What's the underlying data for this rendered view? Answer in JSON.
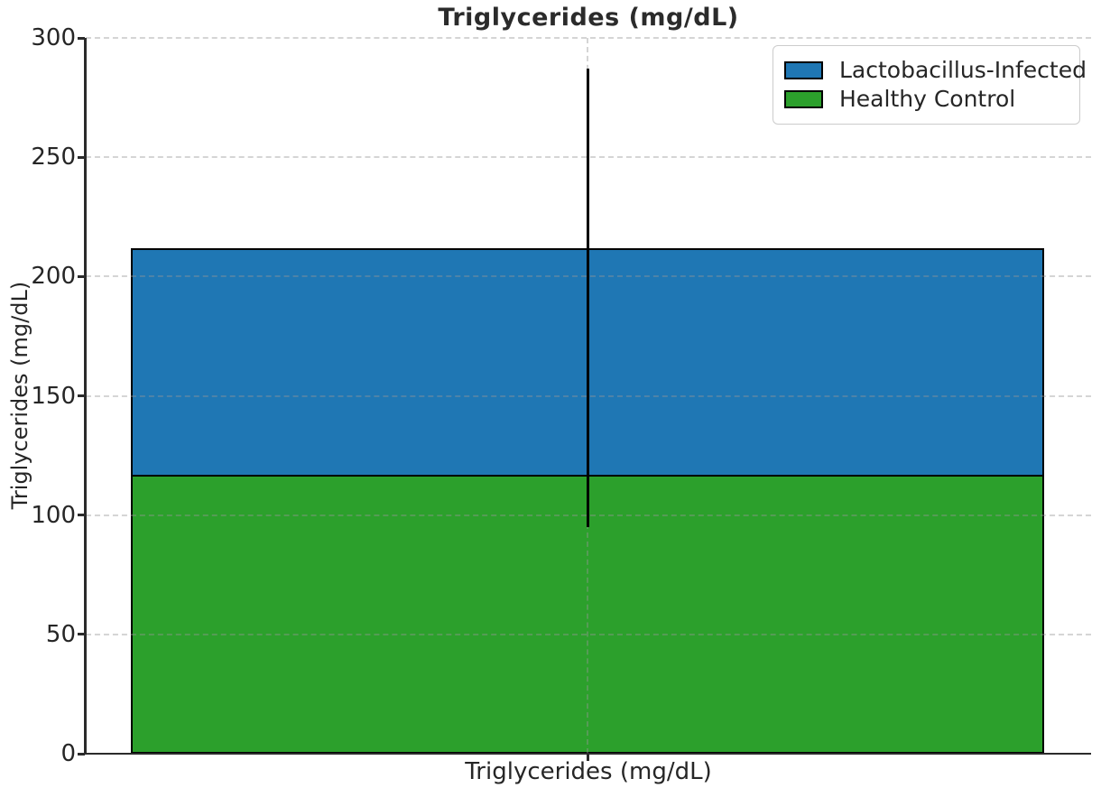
{
  "figure": {
    "background": "#ffffff",
    "text_color": "#262626",
    "title_color": "#2b2b2b",
    "spine_color": "#2b2b2b",
    "grid_color": "rgba(150,150,150,0.4)",
    "bar_edge_color": "#000000",
    "error_bar_color": "#000000",
    "legend_border_color": "#cccccc"
  },
  "chart_data": {
    "type": "bar",
    "title": "Triglycerides (mg/dL)",
    "ylabel": "Triglycerides (mg/dL)",
    "xlabel": "",
    "categories": [
      "Triglycerides (mg/dL)"
    ],
    "ylim": [
      0,
      300
    ],
    "yticks": [
      0,
      50,
      100,
      150,
      200,
      250,
      300
    ],
    "grid": "dashed, horizontal at every y tick plus one vertical at category center, drawn above bars",
    "legend_position": "upper right",
    "bars_overlaid_at_same_x": true,
    "series": [
      {
        "name": "Lactobacillus-Infected",
        "color": "#1f77b4",
        "value": 212,
        "error_low": 137,
        "error_high": 287
      },
      {
        "name": "Healthy Control",
        "color": "#2ca02c",
        "value": 117,
        "error_low": 95,
        "error_high": 139
      }
    ]
  }
}
